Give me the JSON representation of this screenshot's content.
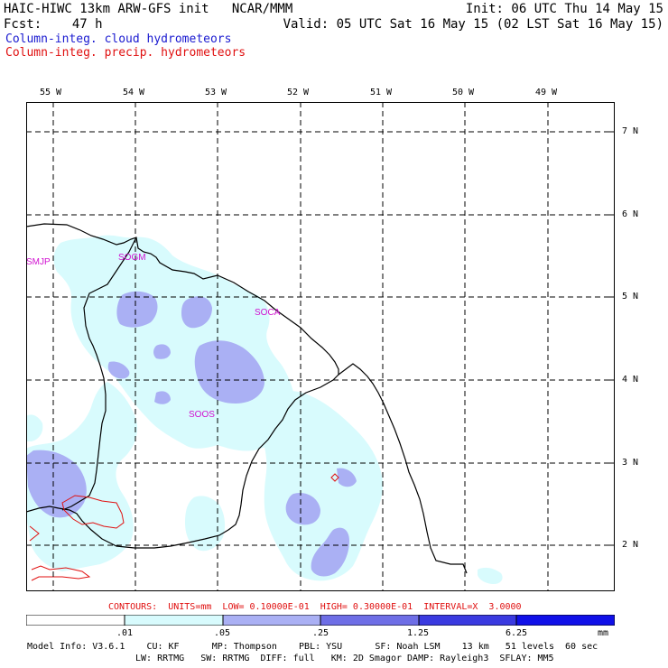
{
  "header": {
    "line1_left": "HAIC-HIWC 13km ARW-GFS init   NCAR/MMM",
    "line1_right": "Init: 06 UTC Thu 14 May 15",
    "line2_left": "Fcst:    47 h",
    "line2_right": "Valid: 05 UTC Sat 16 May 15 (02 LST Sat 16 May 15)",
    "field1": "Column-integ. cloud hydrometeors",
    "field2": "Column-integ. precip. hydrometeors"
  },
  "colors": {
    "cloud_level1": "#d8fbfd",
    "cloud_level2": "#aab0f4",
    "cloud_level3": "#6e6ee6",
    "cloud_level4": "#3a3ae0",
    "cloud_level5": "#1010e8",
    "precip_contour": "#e01010",
    "label_magenta": "#d010d0"
  },
  "map": {
    "lon_labels": [
      "55 W",
      "54 W",
      "53 W",
      "52 W",
      "51 W",
      "50 W",
      "49 W"
    ],
    "lat_labels": [
      "7 N",
      "6 N",
      "5 N",
      "4 N",
      "3 N",
      "2 N"
    ],
    "stations": [
      "SMJP",
      "SOGM",
      "SOCA",
      "SOOS"
    ]
  },
  "footer": {
    "contours": "CONTOURS:  UNITS=mm  LOW= 0.10000E-01  HIGH= 0.30000E-01  INTERVAL=X  3.0000",
    "legend_ticks": [
      ".01",
      ".05",
      ".25",
      "1.25",
      "6.25"
    ],
    "legend_unit": "mm",
    "model_line1": "Model Info: V3.6.1    CU: KF      MP: Thompson    PBL: YSU      SF: Noah LSM    13 km   51 levels  60 sec",
    "model_line2": "LW: RRTMG   SW: RRTMG  DIFF: full   KM: 2D Smagor DAMP: Rayleigh3  SFLAY: MM5"
  }
}
